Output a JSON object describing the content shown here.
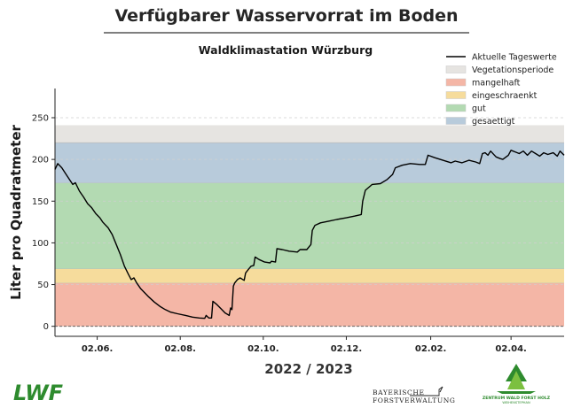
{
  "title": "Verfügbarer Wasservorrat im Boden",
  "subtitle": "Waldklimastation Würzburg",
  "logos": {
    "lwf": "LWF",
    "bayerische_line1": "BAYERISCHE",
    "bayerische_line2": "FORSTVERWALTUNG",
    "zentrum_line1": "ZENTRUM WALD FORST HOLZ",
    "zentrum_line2": "WEIHENSTEPHAN"
  },
  "chart_data": {
    "type": "line",
    "title": "Verfügbarer Wasservorrat im Boden",
    "subtitle": "Waldklimastation Würzburg",
    "xlabel": "2022 / 2023",
    "ylabel": "Liter pro Quadratmeter",
    "ylim": [
      -12,
      285
    ],
    "xlim": [
      "2022-05-01",
      "2023-05-10"
    ],
    "yticks": [
      0,
      50,
      100,
      150,
      200,
      250
    ],
    "xticks": [
      {
        "date": "2022-06-01",
        "label": "02.06."
      },
      {
        "date": "2022-08-01",
        "label": "02.08."
      },
      {
        "date": "2022-10-01",
        "label": "02.10."
      },
      {
        "date": "2022-12-01",
        "label": "02.12."
      },
      {
        "date": "2023-02-01",
        "label": "02.02."
      },
      {
        "date": "2023-04-01",
        "label": "02.04."
      }
    ],
    "grid": true,
    "legend_position": "top-right",
    "bands": [
      {
        "name": "Vegetationsperiode",
        "from": 0,
        "to": 241,
        "color": "#e6e4e1"
      },
      {
        "name": "mangelhaft",
        "from": 0,
        "to": 52,
        "color": "#f4b6a6"
      },
      {
        "name": "eingeschraenkt",
        "from": 52,
        "to": 69,
        "color": "#f6dc9c"
      },
      {
        "name": "gut",
        "from": 69,
        "to": 172,
        "color": "#b3dab2"
      },
      {
        "name": "gesaettigt",
        "from": 172,
        "to": 220,
        "color": "#b8cbdb"
      }
    ],
    "series": [
      {
        "name": "Aktuelle Tageswerte",
        "color": "#000000",
        "points": [
          [
            "2022-05-01",
            188
          ],
          [
            "2022-05-03",
            195
          ],
          [
            "2022-05-06",
            190
          ],
          [
            "2022-05-10",
            180
          ],
          [
            "2022-05-14",
            170
          ],
          [
            "2022-05-16",
            172
          ],
          [
            "2022-05-19",
            162
          ],
          [
            "2022-05-22",
            155
          ],
          [
            "2022-05-25",
            147
          ],
          [
            "2022-05-28",
            142
          ],
          [
            "2022-05-31",
            135
          ],
          [
            "2022-06-03",
            130
          ],
          [
            "2022-06-05",
            125
          ],
          [
            "2022-06-09",
            118
          ],
          [
            "2022-06-12",
            110
          ],
          [
            "2022-06-15",
            98
          ],
          [
            "2022-06-18",
            86
          ],
          [
            "2022-06-21",
            72
          ],
          [
            "2022-06-24",
            62
          ],
          [
            "2022-06-26",
            56
          ],
          [
            "2022-06-28",
            58
          ],
          [
            "2022-06-30",
            52
          ],
          [
            "2022-07-03",
            45
          ],
          [
            "2022-07-06",
            40
          ],
          [
            "2022-07-09",
            35
          ],
          [
            "2022-07-13",
            29
          ],
          [
            "2022-07-17",
            24
          ],
          [
            "2022-07-21",
            20
          ],
          [
            "2022-07-25",
            17
          ],
          [
            "2022-07-30",
            15
          ],
          [
            "2022-08-05",
            13
          ],
          [
            "2022-08-10",
            11
          ],
          [
            "2022-08-15",
            10
          ],
          [
            "2022-08-19",
            9.5
          ],
          [
            "2022-08-20",
            13
          ],
          [
            "2022-08-22",
            10
          ],
          [
            "2022-08-24",
            10
          ],
          [
            "2022-08-25",
            30
          ],
          [
            "2022-08-28",
            26
          ],
          [
            "2022-08-31",
            21
          ],
          [
            "2022-09-03",
            16
          ],
          [
            "2022-09-06",
            13
          ],
          [
            "2022-09-07",
            22
          ],
          [
            "2022-09-08",
            20
          ],
          [
            "2022-09-09",
            48
          ],
          [
            "2022-09-10",
            52
          ],
          [
            "2022-09-12",
            56
          ],
          [
            "2022-09-14",
            58
          ],
          [
            "2022-09-17",
            55
          ],
          [
            "2022-09-18",
            64
          ],
          [
            "2022-09-20",
            68
          ],
          [
            "2022-09-22",
            72
          ],
          [
            "2022-09-24",
            73
          ],
          [
            "2022-09-25",
            83
          ],
          [
            "2022-09-28",
            80
          ],
          [
            "2022-10-02",
            77
          ],
          [
            "2022-10-06",
            76
          ],
          [
            "2022-10-07",
            78
          ],
          [
            "2022-10-10",
            77
          ],
          [
            "2022-10-11",
            93
          ],
          [
            "2022-10-15",
            92
          ],
          [
            "2022-10-20",
            90
          ],
          [
            "2022-10-26",
            89
          ],
          [
            "2022-10-28",
            92
          ],
          [
            "2022-11-02",
            92
          ],
          [
            "2022-11-05",
            98
          ],
          [
            "2022-11-06",
            115
          ],
          [
            "2022-11-08",
            121
          ],
          [
            "2022-11-12",
            124
          ],
          [
            "2022-11-18",
            126
          ],
          [
            "2022-11-24",
            128
          ],
          [
            "2022-12-01",
            130
          ],
          [
            "2022-12-07",
            132
          ],
          [
            "2022-12-12",
            134
          ],
          [
            "2022-12-13",
            150
          ],
          [
            "2022-12-15",
            163
          ],
          [
            "2022-12-20",
            170
          ],
          [
            "2022-12-26",
            171
          ],
          [
            "2022-12-31",
            176
          ],
          [
            "2023-01-04",
            182
          ],
          [
            "2023-01-06",
            190
          ],
          [
            "2023-01-11",
            193
          ],
          [
            "2023-01-17",
            195
          ],
          [
            "2023-01-24",
            194
          ],
          [
            "2023-01-28",
            194
          ],
          [
            "2023-01-30",
            205
          ],
          [
            "2023-02-04",
            202
          ],
          [
            "2023-02-10",
            199
          ],
          [
            "2023-02-16",
            196
          ],
          [
            "2023-02-19",
            198
          ],
          [
            "2023-02-24",
            196
          ],
          [
            "2023-03-01",
            199
          ],
          [
            "2023-03-06",
            197
          ],
          [
            "2023-03-09",
            195
          ],
          [
            "2023-03-11",
            207
          ],
          [
            "2023-03-13",
            208
          ],
          [
            "2023-03-15",
            205
          ],
          [
            "2023-03-17",
            210
          ],
          [
            "2023-03-21",
            203
          ],
          [
            "2023-03-24",
            201
          ],
          [
            "2023-03-26",
            200
          ],
          [
            "2023-03-30",
            205
          ],
          [
            "2023-04-01",
            211
          ],
          [
            "2023-04-04",
            209
          ],
          [
            "2023-04-07",
            207
          ],
          [
            "2023-04-10",
            210
          ],
          [
            "2023-04-13",
            205
          ],
          [
            "2023-04-16",
            210
          ],
          [
            "2023-04-19",
            207
          ],
          [
            "2023-04-22",
            204
          ],
          [
            "2023-04-25",
            208
          ],
          [
            "2023-04-28",
            206
          ],
          [
            "2023-05-02",
            208
          ],
          [
            "2023-05-05",
            204
          ],
          [
            "2023-05-07",
            210
          ],
          [
            "2023-05-10",
            205
          ]
        ]
      }
    ]
  }
}
